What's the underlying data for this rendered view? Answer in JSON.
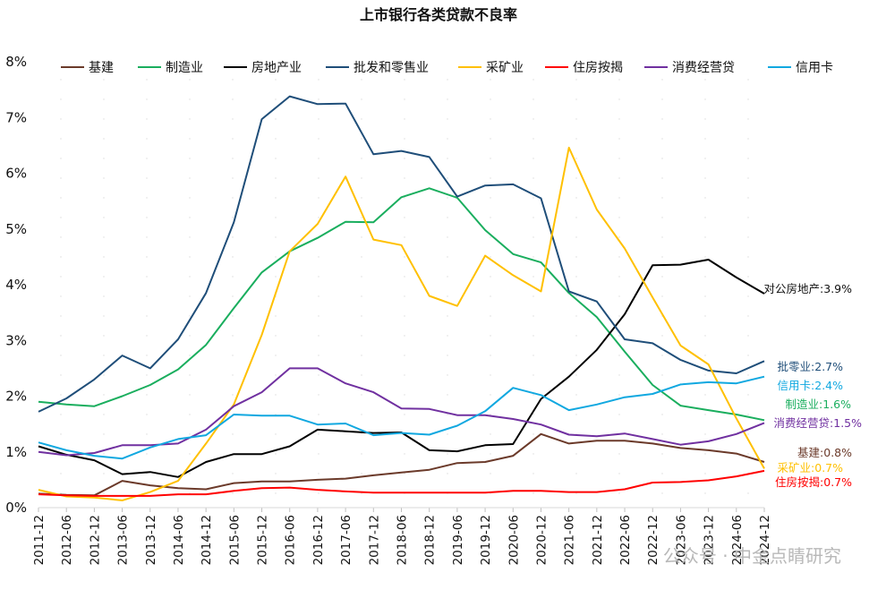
{
  "chart_data": {
    "type": "line",
    "title": "上市银行各类贷款不良率",
    "xlabel": "",
    "ylabel": "",
    "ylim": [
      0,
      8
    ],
    "yticks": [
      "0%",
      "1%",
      "2%",
      "3%",
      "4%",
      "5%",
      "6%",
      "7%",
      "8%"
    ],
    "grid": false,
    "legend_position": "top",
    "x": [
      "2011-12",
      "2012-06",
      "2012-12",
      "2013-06",
      "2013-12",
      "2014-06",
      "2014-12",
      "2015-06",
      "2015-12",
      "2016-06",
      "2016-12",
      "2017-06",
      "2017-12",
      "2018-06",
      "2018-12",
      "2019-06",
      "2019-12",
      "2020-06",
      "2020-12",
      "2021-06",
      "2021-12",
      "2022-06",
      "2022-12",
      "2023-06",
      "2023-12",
      "2024-06",
      "2024-12"
    ],
    "series": [
      {
        "name": "基建",
        "color": "#6b3a2a",
        "end_label": "基建:0.8%",
        "values": [
          0.25,
          0.23,
          0.22,
          0.48,
          0.4,
          0.35,
          0.33,
          0.44,
          0.47,
          0.47,
          0.5,
          0.52,
          0.58,
          0.63,
          0.68,
          0.8,
          0.82,
          0.93,
          1.32,
          1.15,
          1.2,
          1.2,
          1.15,
          1.07,
          1.03,
          0.97,
          0.82
        ]
      },
      {
        "name": "制造业",
        "color": "#1aae5e",
        "end_label": "制造业:1.6%",
        "values": [
          1.9,
          1.85,
          1.82,
          2.0,
          2.2,
          2.48,
          2.92,
          3.58,
          4.22,
          4.6,
          4.84,
          5.13,
          5.12,
          5.57,
          5.73,
          5.56,
          4.98,
          4.55,
          4.4,
          3.85,
          3.42,
          2.8,
          2.2,
          1.83,
          1.75,
          1.67,
          1.57
        ]
      },
      {
        "name": "房地产业",
        "color": "#000000",
        "end_label": "对公房地产:3.9%",
        "values": [
          1.1,
          0.95,
          0.85,
          0.6,
          0.64,
          0.55,
          0.82,
          0.96,
          0.96,
          1.1,
          1.4,
          1.37,
          1.34,
          1.35,
          1.03,
          1.01,
          1.12,
          1.14,
          1.95,
          2.35,
          2.83,
          3.47,
          4.35,
          4.36,
          4.45,
          4.13,
          3.84
        ]
      },
      {
        "name": "批发和零售业",
        "color": "#1f4e79",
        "end_label": "批零业:2.7%",
        "values": [
          1.72,
          1.96,
          2.3,
          2.73,
          2.5,
          3.02,
          3.85,
          5.12,
          6.97,
          7.38,
          7.24,
          7.25,
          6.34,
          6.4,
          6.29,
          5.58,
          5.78,
          5.8,
          5.55,
          3.88,
          3.7,
          3.02,
          2.95,
          2.65,
          2.46,
          2.41,
          2.63
        ]
      },
      {
        "name": "采矿业",
        "color": "#ffc000",
        "end_label": "采矿业:0.7%",
        "values": [
          0.32,
          0.2,
          0.18,
          0.13,
          0.28,
          0.48,
          1.15,
          1.85,
          3.1,
          4.6,
          5.09,
          5.94,
          4.81,
          4.71,
          3.8,
          3.62,
          4.52,
          4.17,
          3.88,
          6.46,
          5.35,
          4.65,
          3.77,
          2.91,
          2.57,
          1.6,
          0.7
        ]
      },
      {
        "name": "住房按揭",
        "color": "#ff0000",
        "end_label": "住房按揭:0.7%",
        "values": [
          0.24,
          0.22,
          0.21,
          0.21,
          0.21,
          0.24,
          0.24,
          0.3,
          0.35,
          0.36,
          0.32,
          0.29,
          0.27,
          0.27,
          0.27,
          0.27,
          0.27,
          0.3,
          0.3,
          0.28,
          0.28,
          0.33,
          0.45,
          0.46,
          0.49,
          0.56,
          0.66
        ]
      },
      {
        "name": "消费经营贷",
        "color": "#7030a0",
        "end_label": "消费经营贷:1.5%",
        "values": [
          1.0,
          0.94,
          0.98,
          1.12,
          1.12,
          1.15,
          1.4,
          1.82,
          2.07,
          2.5,
          2.5,
          2.23,
          2.07,
          1.78,
          1.77,
          1.66,
          1.66,
          1.59,
          1.49,
          1.31,
          1.28,
          1.33,
          1.23,
          1.13,
          1.19,
          1.32,
          1.52
        ]
      },
      {
        "name": "信用卡",
        "color": "#11a8e0",
        "end_label": "信用卡:2.4%",
        "values": [
          1.17,
          1.03,
          0.93,
          0.88,
          1.08,
          1.23,
          1.3,
          1.67,
          1.65,
          1.65,
          1.49,
          1.51,
          1.3,
          1.34,
          1.31,
          1.47,
          1.73,
          2.15,
          2.02,
          1.75,
          1.85,
          1.98,
          2.04,
          2.21,
          2.25,
          2.23,
          2.35
        ]
      }
    ]
  },
  "watermark": "公众号 · 中金点睛研究"
}
